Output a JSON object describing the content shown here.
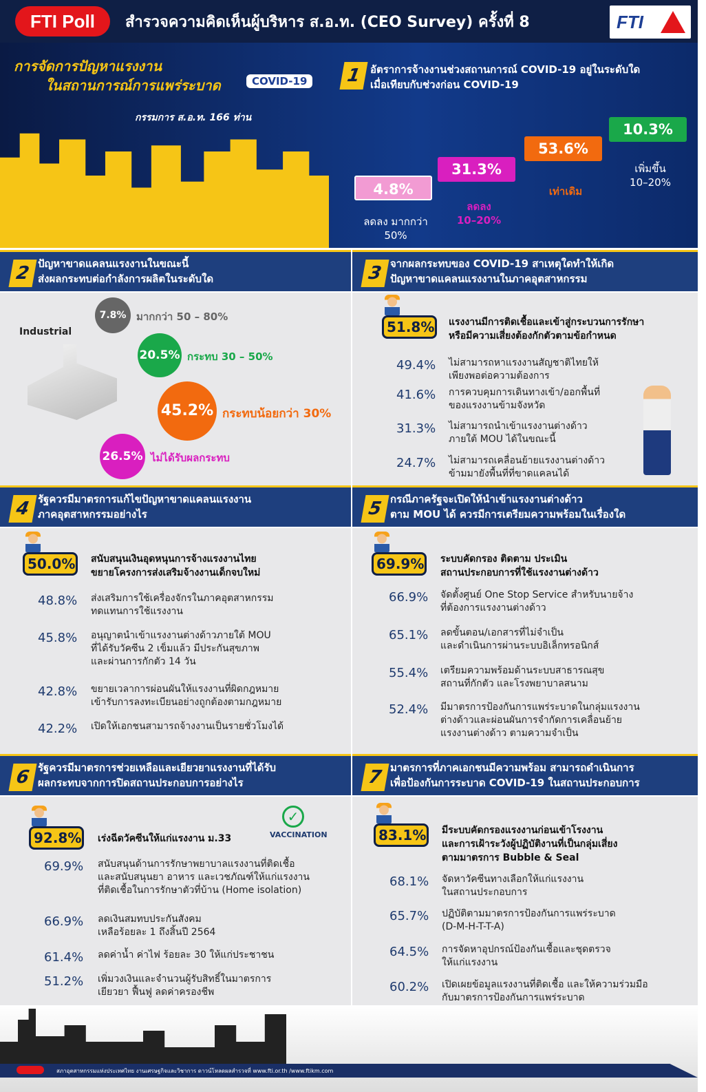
{
  "header": {
    "badge": "FTI Poll",
    "title": "สำรวจความคิดเห็นผู้บริหาร ส.อ.ท. (CEO Survey) ครั้งที่ 8",
    "logo": "FTI"
  },
  "hero": {
    "title_line1": "การจัดการปัญหาแรงงาน",
    "title_line2": "ในสถานการณ์การแพร่ระบาด",
    "covid_badge": "COVID-19",
    "members": "กรรมการ ส.อ.ท. 166 ท่าน"
  },
  "colors": {
    "navy": "#1e3f7e",
    "yellow": "#f6c516",
    "red": "#e3161b",
    "pink": "#f29bd3",
    "magenta": "#d91fbf",
    "orange": "#f26a0f",
    "green": "#1aa84a",
    "grey": "#666666"
  },
  "q1": {
    "number": "1",
    "title": "อัตราการจ้างงานช่วงสถานการณ์ COVID-19 อยู่ในระดับใด\nเมื่อเทียบกับช่วงก่อน COVID-19",
    "bars": [
      {
        "value": "4.8%",
        "label": "ลดลง มากกว่า\n50%",
        "color": "#f29bd3"
      },
      {
        "value": "31.3%",
        "label": "ลดลง\n10–20%",
        "color": "#d91fbf"
      },
      {
        "value": "53.6%",
        "label": "เท่าเดิม",
        "color": "#f26a0f"
      },
      {
        "value": "10.3%",
        "label": "เพิ่มขึ้น\n10–20%",
        "color": "#1aa84a"
      }
    ]
  },
  "q2": {
    "number": "2",
    "title": "ปัญหาขาดแคลนแรงงานในขณะนี้\nส่งผลกระทบต่อกำลังการผลิตในระดับใด",
    "icon_label": "Industrial",
    "items": [
      {
        "value": "7.8%",
        "label": "มากกว่า 50 – 80%",
        "color": "#666666"
      },
      {
        "value": "20.5%",
        "label": "กระทบ 30 – 50%",
        "color": "#1aa84a"
      },
      {
        "value": "45.2%",
        "label": "กระทบน้อยกว่า 30%",
        "color": "#f26a0f"
      },
      {
        "value": "26.5%",
        "label": "ไม่ได้รับผลกระทบ",
        "color": "#d91fbf"
      }
    ]
  },
  "q3": {
    "number": "3",
    "title": "จากผลกระทบของ COVID-19 สาเหตุใดทำให้เกิด\nปัญหาขาดแคลนแรงงานในภาคอุตสาหกรรม",
    "top": {
      "value": "51.8%",
      "text": "แรงงานมีการติดเชื้อและเข้าสู่กระบวนการรักษา\nหรือมีความเสี่ยงต้องกักตัวตามข้อกำหนด"
    },
    "items": [
      {
        "value": "49.4%",
        "text": "ไม่สามารถหาแรงงานสัญชาติไทยให้\nเพียงพอต่อความต้องการ"
      },
      {
        "value": "41.6%",
        "text": "การควบคุมการเดินทางเข้า/ออกพื้นที่\nของแรงงานข้ามจังหวัด"
      },
      {
        "value": "31.3%",
        "text": "ไม่สามารถนำเข้าแรงงานต่างด้าว\nภายใต้ MOU ได้ในขณะนี้"
      },
      {
        "value": "24.7%",
        "text": "ไม่สามารถเคลื่อนย้ายแรงงานต่างด้าว\nข้ามมายังพื้นที่ที่ขาดแคลนได้"
      }
    ]
  },
  "q4": {
    "number": "4",
    "title": "รัฐควรมีมาตรการแก้ไขปัญหาขาดแคลนแรงงาน\nภาคอุตสาหกรรมอย่างไร",
    "top": {
      "value": "50.0%",
      "text": "สนับสนุนเงินอุดหนุนการจ้างแรงงานไทย\nขยายโครงการส่งเสริมจ้างงานเด็กจบใหม่"
    },
    "items": [
      {
        "value": "48.8%",
        "text": "ส่งเสริมการใช้เครื่องจักรในภาคอุตสาหกรรม\nทดแทนการใช้แรงงาน"
      },
      {
        "value": "45.8%",
        "text": "อนุญาตนำเข้าแรงงานต่างด้าวภายใต้ MOU\nที่ได้รับวัคซีน 2 เข็มแล้ว มีประกันสุขภาพ\nและผ่านการกักตัว 14 วัน"
      },
      {
        "value": "42.8%",
        "text": "ขยายเวลาการผ่อนผันให้แรงงานที่ผิดกฎหมาย\nเข้ารับการลงทะเบียนอย่างถูกต้องตามกฎหมาย"
      },
      {
        "value": "42.2%",
        "text": "เปิดให้เอกชนสามารถจ้างงานเป็นรายชั่วโมงได้"
      }
    ]
  },
  "q5": {
    "number": "5",
    "title": "กรณีภาครัฐจะเปิดให้นำเข้าแรงงานต่างด้าว\nตาม MOU ได้ ควรมีการเตรียมความพร้อมในเรื่องใด",
    "top": {
      "value": "69.9%",
      "text": "ระบบคัดกรอง ติดตาม ประเมิน\nสถานประกอบการที่ใช้แรงงานต่างด้าว"
    },
    "items": [
      {
        "value": "66.9%",
        "text": "จัดตั้งศูนย์ One Stop Service สำหรับนายจ้าง\nที่ต้องการแรงงานต่างด้าว"
      },
      {
        "value": "65.1%",
        "text": "ลดขั้นตอน/เอกสารที่ไม่จำเป็น\nและดำเนินการผ่านระบบอิเล็กทรอนิกส์"
      },
      {
        "value": "55.4%",
        "text": "เตรียมความพร้อมด้านระบบสาธารณสุข\nสถานที่กักตัว และโรงพยาบาลสนาม"
      },
      {
        "value": "52.4%",
        "text": "มีมาตรการป้องกันการแพร่ระบาดในกลุ่มแรงงาน\nต่างด้าวและผ่อนผันการจำกัดการเคลื่อนย้าย\nแรงงานต่างด้าว ตามความจำเป็น"
      }
    ]
  },
  "q6": {
    "number": "6",
    "title": "รัฐควรมีมาตรการช่วยเหลือและเยียวยาแรงงานที่ได้รับ\nผลกระทบจากการปิดสถานประกอบการอย่างไร",
    "vaccination_label": "VACCINATION",
    "top": {
      "value": "92.8%",
      "text": "เร่งฉีดวัคซีนให้แก่แรงงาน ม.33"
    },
    "items": [
      {
        "value": "69.9%",
        "text": "สนับสนุนด้านการรักษาพยาบาลแรงงานที่ติดเชื้อ\nและสนับสนุนยา อาหาร และเวชภัณฑ์ให้แก่แรงงาน\nที่ติดเชื้อในการรักษาตัวที่บ้าน (Home isolation)"
      },
      {
        "value": "66.9%",
        "text": "ลดเงินสมทบประกันสังคม\nเหลือร้อยละ 1 ถึงสิ้นปี 2564"
      },
      {
        "value": "61.4%",
        "text": "ลดค่าน้ำ ค่าไฟ ร้อยละ 30 ให้แก่ประชาชน"
      },
      {
        "value": "51.2%",
        "text": "เพิ่มวงเงินและจำนวนผู้รับสิทธิ์ในมาตรการ\nเยียวยา ฟื้นฟู ลดค่าครองชีพ"
      }
    ]
  },
  "q7": {
    "number": "7",
    "title": "มาตรการที่ภาคเอกชนมีความพร้อม สามารถดำเนินการ\nเพื่อป้องกันการระบาด COVID-19 ในสถานประกอบการ",
    "top": {
      "value": "83.1%",
      "text": "มีระบบคัดกรองแรงงานก่อนเข้าโรงงาน\nและการเฝ้าระวังผู้ปฏิบัติงานที่เป็นกลุ่มเสี่ยง\nตามมาตรการ Bubble & Seal"
    },
    "items": [
      {
        "value": "68.1%",
        "text": "จัดหาวัคซีนทางเลือกให้แก่แรงงาน\nในสถานประกอบการ"
      },
      {
        "value": "65.7%",
        "text": "ปฏิบัติตามมาตรการป้องกันการแพร่ระบาด\n(D-M-H-T-T-A)"
      },
      {
        "value": "64.5%",
        "text": "การจัดหาอุปกรณ์ป้องกันเชื้อและชุดตรวจ\nให้แก่แรงงาน"
      },
      {
        "value": "60.2%",
        "text": "เปิดเผยข้อมูลแรงงานที่ติดเชื้อ และให้ความร่วมมือ\nกับมาตรการป้องกันการแพร่ระบาด"
      }
    ]
  },
  "footer": {
    "text": "สภาอุตสาหกรรมแห่งประเทศไทย งานเศรษฐกิจและวิชาการ  ดาวน์โหลดผลสำรวจที่ www.fti.or.th /www.ftikm.com"
  }
}
